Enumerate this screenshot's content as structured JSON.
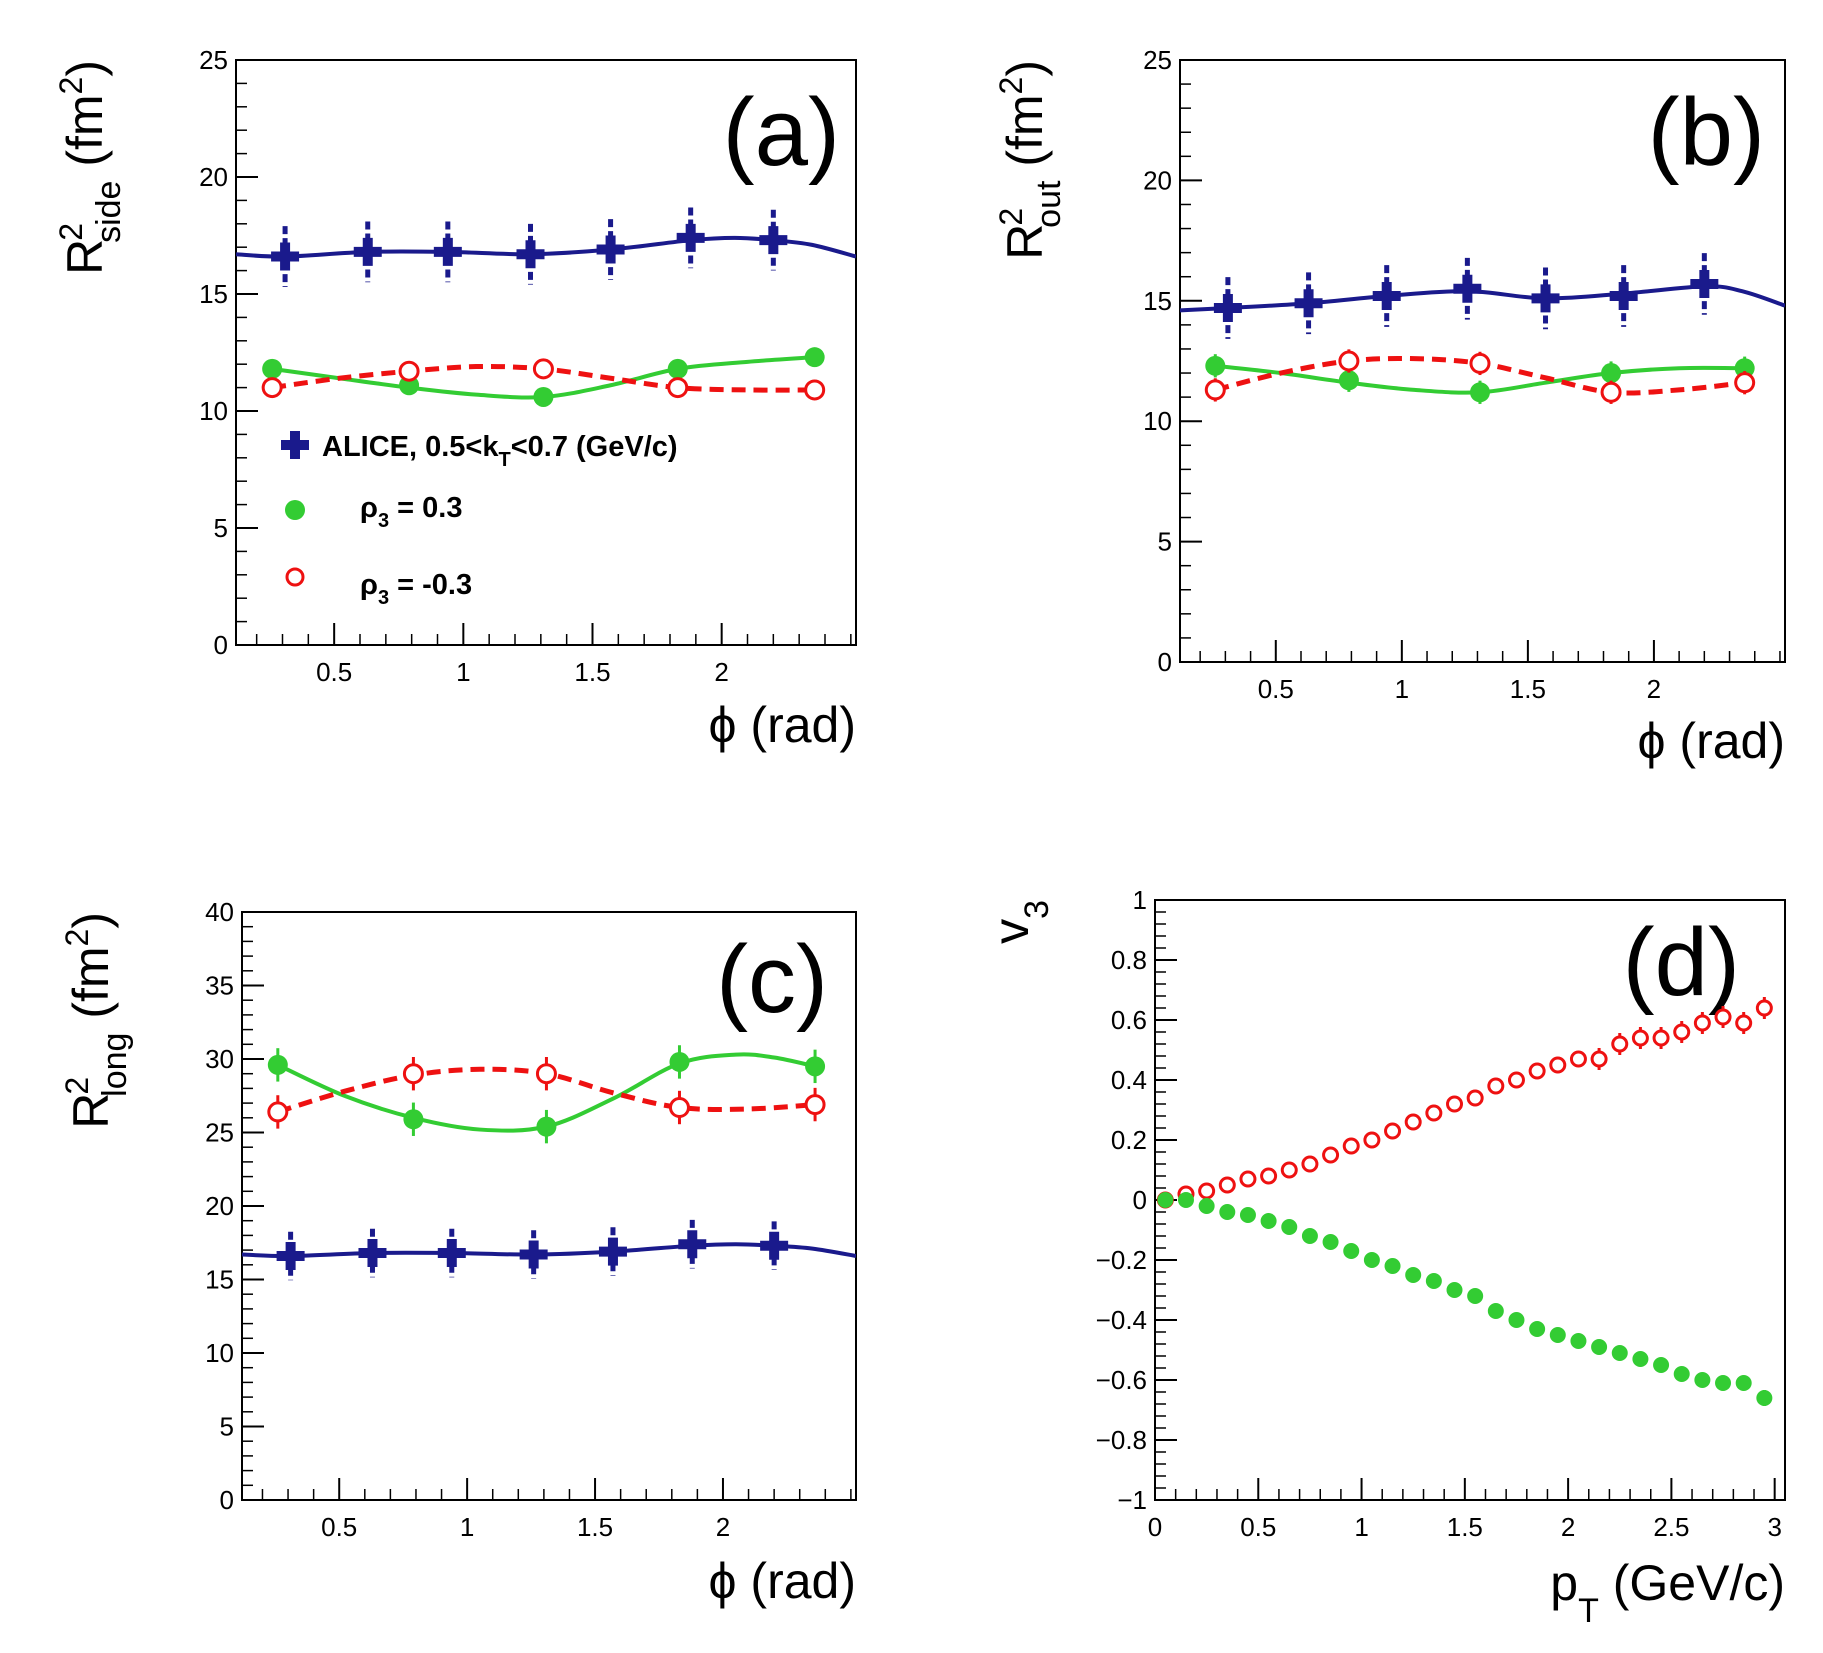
{
  "chart_data": [
    {
      "type": "scatter",
      "panel_label": "(a)",
      "ylabel": {
        "main": "R",
        "sup": "2",
        "sub": "side",
        "unit_open": " (fm",
        "unit_sup": "2",
        "unit_close": ")"
      },
      "xlabel": "ϕ (rad)",
      "xlim": [
        0.12,
        2.52
      ],
      "ylim": [
        0,
        25
      ],
      "xticks": [
        0.5,
        1,
        1.5,
        2
      ],
      "xtick_labels": [
        "0.5",
        "1",
        "1.5",
        "2"
      ],
      "yticks": [
        0,
        5,
        10,
        15,
        20,
        25
      ],
      "ytick_labels": [
        "0",
        "5",
        "10",
        "15",
        "20",
        "25"
      ],
      "series": [
        {
          "name": "ALICE, 0.5<k_T<0.7 (GeV/c)",
          "marker": "cross",
          "color": "#1a1a8c",
          "x": [
            0.31,
            0.63,
            0.94,
            1.26,
            1.57,
            1.88,
            2.2
          ],
          "y": [
            16.6,
            16.8,
            16.8,
            16.7,
            16.9,
            17.4,
            17.3
          ],
          "err": [
            0.7,
            0.7,
            0.7,
            0.7,
            0.7,
            0.7,
            0.7
          ],
          "curve": {
            "x": [
              0.12,
              0.31,
              0.63,
              0.94,
              1.26,
              1.57,
              1.88,
              2.05,
              2.2,
              2.35,
              2.52
            ],
            "y": [
              16.7,
              16.6,
              16.8,
              16.8,
              16.7,
              16.9,
              17.3,
              17.4,
              17.3,
              17.1,
              16.6
            ],
            "dashed": false
          }
        },
        {
          "name": "ρ_3 = 0.3",
          "marker": "filled-circle",
          "color": "#33cc33",
          "x": [
            0.26,
            0.79,
            1.31,
            1.83,
            2.36
          ],
          "y": [
            11.8,
            11.1,
            10.6,
            11.8,
            12.3
          ],
          "err": [
            0.3,
            0.3,
            0.3,
            0.3,
            0.3
          ],
          "curve": {
            "x": [
              0.26,
              0.52,
              0.79,
              1.05,
              1.31,
              1.57,
              1.83,
              2.1,
              2.36
            ],
            "y": [
              11.8,
              11.4,
              11.0,
              10.7,
              10.6,
              11.1,
              11.8,
              12.1,
              12.3
            ],
            "dashed": false
          }
        },
        {
          "name": "ρ_3 = -0.3",
          "marker": "open-circle",
          "color": "#ee1111",
          "x": [
            0.26,
            0.79,
            1.31,
            1.83,
            2.36
          ],
          "y": [
            11.0,
            11.7,
            11.8,
            11.0,
            10.9
          ],
          "err": [
            0.3,
            0.3,
            0.3,
            0.3,
            0.3
          ],
          "curve": {
            "x": [
              0.26,
              0.52,
              0.79,
              1.05,
              1.31,
              1.57,
              1.83,
              2.1,
              2.36
            ],
            "y": [
              11.0,
              11.4,
              11.7,
              11.9,
              11.8,
              11.4,
              11.0,
              10.9,
              10.9
            ],
            "dashed": true
          }
        }
      ],
      "legend": {
        "placement": "lower-left",
        "entries": [
          {
            "marker": "cross",
            "color": "#1a1a8c",
            "label": "ALICE, 0.5<k",
            "sub": "T",
            "label_after": "<0.7 (GeV/c)"
          },
          {
            "marker": "filled-circle",
            "color": "#33cc33",
            "label": "ρ",
            "sub": "3",
            "label_after": " = 0.3"
          },
          {
            "marker": "open-circle",
            "color": "#ee1111",
            "label": "ρ",
            "sub": "3",
            "label_after": " = -0.3"
          }
        ]
      }
    },
    {
      "type": "scatter",
      "panel_label": "(b)",
      "ylabel": {
        "main": "R",
        "sup": "2",
        "sub": "out",
        "unit_open": " (fm",
        "unit_sup": "2",
        "unit_close": ")"
      },
      "xlabel": "ϕ (rad)",
      "xlim": [
        0.12,
        2.52
      ],
      "ylim": [
        0,
        25
      ],
      "xticks": [
        0.5,
        1,
        1.5,
        2
      ],
      "xtick_labels": [
        "0.5",
        "1",
        "1.5",
        "2"
      ],
      "yticks": [
        0,
        5,
        10,
        15,
        20,
        25
      ],
      "ytick_labels": [
        "0",
        "5",
        "10",
        "15",
        "20",
        "25"
      ],
      "series": [
        {
          "name": "ALICE",
          "marker": "cross",
          "color": "#1a1a8c",
          "x": [
            0.31,
            0.63,
            0.94,
            1.26,
            1.57,
            1.88,
            2.2
          ],
          "y": [
            14.7,
            14.9,
            15.2,
            15.5,
            15.1,
            15.2,
            15.7
          ],
          "err": [
            0.7,
            0.7,
            0.7,
            0.7,
            0.7,
            0.7,
            0.7
          ],
          "curve": {
            "x": [
              0.12,
              0.31,
              0.63,
              0.94,
              1.26,
              1.57,
              1.88,
              2.2,
              2.35,
              2.52
            ],
            "y": [
              14.6,
              14.7,
              14.9,
              15.2,
              15.4,
              15.1,
              15.3,
              15.6,
              15.4,
              14.8
            ],
            "dashed": false
          }
        },
        {
          "name": "ρ_3 = 0.3",
          "marker": "filled-circle",
          "color": "#33cc33",
          "x": [
            0.26,
            0.79,
            1.31,
            1.83,
            2.36
          ],
          "y": [
            12.3,
            11.7,
            11.2,
            12.0,
            12.2
          ],
          "err": [
            0.4,
            0.4,
            0.4,
            0.4,
            0.4
          ],
          "curve": {
            "x": [
              0.26,
              0.52,
              0.79,
              1.05,
              1.31,
              1.57,
              1.83,
              2.1,
              2.36
            ],
            "y": [
              12.3,
              12.0,
              11.6,
              11.3,
              11.2,
              11.6,
              12.0,
              12.2,
              12.2
            ],
            "dashed": false
          }
        },
        {
          "name": "ρ_3 = -0.3",
          "marker": "open-circle",
          "color": "#ee1111",
          "x": [
            0.26,
            0.79,
            1.31,
            1.83,
            2.36
          ],
          "y": [
            11.3,
            12.5,
            12.4,
            11.2,
            11.6
          ],
          "err": [
            0.4,
            0.4,
            0.4,
            0.4,
            0.4
          ],
          "curve": {
            "x": [
              0.26,
              0.52,
              0.79,
              1.05,
              1.31,
              1.57,
              1.83,
              2.1,
              2.36
            ],
            "y": [
              11.3,
              12.0,
              12.5,
              12.6,
              12.4,
              11.8,
              11.2,
              11.3,
              11.6
            ],
            "dashed": true
          }
        }
      ]
    },
    {
      "type": "scatter",
      "panel_label": "(c)",
      "ylabel": {
        "main": "R",
        "sup": "2",
        "sub": "long",
        "unit_open": " (fm",
        "unit_sup": "2",
        "unit_close": ")"
      },
      "xlabel": "ϕ (rad)",
      "xlim": [
        0.12,
        2.52
      ],
      "ylim": [
        0,
        40
      ],
      "xticks": [
        0.5,
        1,
        1.5,
        2
      ],
      "xtick_labels": [
        "0.5",
        "1",
        "1.5",
        "2"
      ],
      "yticks": [
        0,
        5,
        10,
        15,
        20,
        25,
        30,
        35,
        40
      ],
      "ytick_labels": [
        "0",
        "5",
        "10",
        "15",
        "20",
        "25",
        "30",
        "35",
        "40"
      ],
      "series": [
        {
          "name": "ALICE",
          "marker": "cross",
          "color": "#1a1a8c",
          "x": [
            0.31,
            0.63,
            0.94,
            1.26,
            1.57,
            1.88,
            2.2
          ],
          "y": [
            16.6,
            16.8,
            16.8,
            16.7,
            16.9,
            17.4,
            17.3
          ],
          "err": [
            0.7,
            0.7,
            0.7,
            0.7,
            0.7,
            0.7,
            0.7
          ],
          "curve": {
            "x": [
              0.12,
              0.31,
              0.63,
              0.94,
              1.26,
              1.57,
              1.88,
              2.05,
              2.2,
              2.35,
              2.52
            ],
            "y": [
              16.7,
              16.6,
              16.8,
              16.8,
              16.7,
              16.9,
              17.3,
              17.4,
              17.3,
              17.1,
              16.6
            ],
            "dashed": false
          }
        },
        {
          "name": "ρ_3 = 0.3",
          "marker": "filled-circle",
          "color": "#33cc33",
          "x": [
            0.26,
            0.79,
            1.31,
            1.83,
            2.36
          ],
          "y": [
            29.6,
            25.9,
            25.4,
            29.8,
            29.5
          ],
          "err": [
            1.0,
            1.0,
            1.0,
            1.0,
            1.0
          ],
          "curve": {
            "x": [
              0.26,
              0.52,
              0.79,
              1.05,
              1.31,
              1.57,
              1.83,
              2.05,
              2.2,
              2.36
            ],
            "y": [
              29.6,
              27.5,
              26.0,
              25.2,
              25.4,
              27.3,
              29.7,
              30.3,
              30.1,
              29.5
            ],
            "dashed": false
          }
        },
        {
          "name": "ρ_3 = -0.3",
          "marker": "open-circle",
          "color": "#ee1111",
          "x": [
            0.26,
            0.79,
            1.31,
            1.83,
            2.36
          ],
          "y": [
            26.4,
            29.0,
            29.0,
            26.7,
            26.9
          ],
          "err": [
            1.0,
            1.0,
            1.0,
            1.0,
            1.0
          ],
          "curve": {
            "x": [
              0.26,
              0.52,
              0.79,
              1.05,
              1.31,
              1.57,
              1.83,
              2.1,
              2.36
            ],
            "y": [
              26.4,
              27.8,
              28.9,
              29.3,
              29.0,
              27.7,
              26.7,
              26.6,
              26.9
            ],
            "dashed": true
          }
        }
      ]
    },
    {
      "type": "scatter",
      "panel_label": "(d)",
      "ylabel": {
        "main": "v",
        "sub": "3"
      },
      "xlabel": {
        "main": "p",
        "sub": "T",
        "rest": " (GeV/c)"
      },
      "xlim": [
        0,
        3.05
      ],
      "ylim": [
        -1,
        1
      ],
      "xticks": [
        0,
        0.5,
        1,
        1.5,
        2,
        2.5,
        3
      ],
      "xtick_labels": [
        "0",
        "0.5",
        "1",
        "1.5",
        "2",
        "2.5",
        "3"
      ],
      "yticks": [
        -1,
        -0.8,
        -0.6,
        -0.4,
        -0.2,
        0,
        0.2,
        0.4,
        0.6,
        0.8,
        1
      ],
      "ytick_labels": [
        "−1",
        "−0.8",
        "−0.6",
        "−0.4",
        "−0.2",
        "0",
        "0.2",
        "0.4",
        "0.6",
        "0.8",
        "1"
      ],
      "series": [
        {
          "name": "ρ_3 = -0.3",
          "marker": "open-circle",
          "color": "#ee1111",
          "x": [
            0.05,
            0.15,
            0.25,
            0.35,
            0.45,
            0.55,
            0.65,
            0.75,
            0.85,
            0.95,
            1.05,
            1.15,
            1.25,
            1.35,
            1.45,
            1.55,
            1.65,
            1.75,
            1.85,
            1.95,
            2.05,
            2.15,
            2.25,
            2.35,
            2.45,
            2.55,
            2.65,
            2.75,
            2.85,
            2.95
          ],
          "y": [
            0.0,
            0.02,
            0.03,
            0.05,
            0.07,
            0.08,
            0.1,
            0.12,
            0.15,
            0.18,
            0.2,
            0.23,
            0.26,
            0.29,
            0.32,
            0.34,
            0.38,
            0.4,
            0.43,
            0.45,
            0.47,
            0.47,
            0.52,
            0.54,
            0.54,
            0.56,
            0.59,
            0.61,
            0.59,
            0.64
          ],
          "err": [
            0.02,
            0.02,
            0.02,
            0.02,
            0.02,
            0.02,
            0.02,
            0.02,
            0.02,
            0.02,
            0.02,
            0.02,
            0.02,
            0.02,
            0.02,
            0.02,
            0.02,
            0.02,
            0.02,
            0.02,
            0.02,
            0.03,
            0.03,
            0.03,
            0.03,
            0.03,
            0.03,
            0.03,
            0.03,
            0.03
          ]
        },
        {
          "name": "ρ_3 = 0.3",
          "marker": "filled-circle",
          "color": "#33cc33",
          "x": [
            0.05,
            0.15,
            0.25,
            0.35,
            0.45,
            0.55,
            0.65,
            0.75,
            0.85,
            0.95,
            1.05,
            1.15,
            1.25,
            1.35,
            1.45,
            1.55,
            1.65,
            1.75,
            1.85,
            1.95,
            2.05,
            2.15,
            2.25,
            2.35,
            2.45,
            2.55,
            2.65,
            2.75,
            2.85,
            2.95
          ],
          "y": [
            0.0,
            0.0,
            -0.02,
            -0.04,
            -0.05,
            -0.07,
            -0.09,
            -0.12,
            -0.14,
            -0.17,
            -0.2,
            -0.22,
            -0.25,
            -0.27,
            -0.3,
            -0.32,
            -0.37,
            -0.4,
            -0.43,
            -0.45,
            -0.47,
            -0.49,
            -0.51,
            -0.53,
            -0.55,
            -0.58,
            -0.6,
            -0.61,
            -0.61,
            -0.66
          ],
          "err": [
            0.01,
            0.01,
            0.01,
            0.01,
            0.01,
            0.01,
            0.01,
            0.01,
            0.01,
            0.01,
            0.01,
            0.01,
            0.01,
            0.01,
            0.01,
            0.01,
            0.01,
            0.01,
            0.01,
            0.01,
            0.01,
            0.01,
            0.01,
            0.01,
            0.01,
            0.01,
            0.01,
            0.01,
            0.01,
            0.02
          ]
        }
      ]
    }
  ]
}
